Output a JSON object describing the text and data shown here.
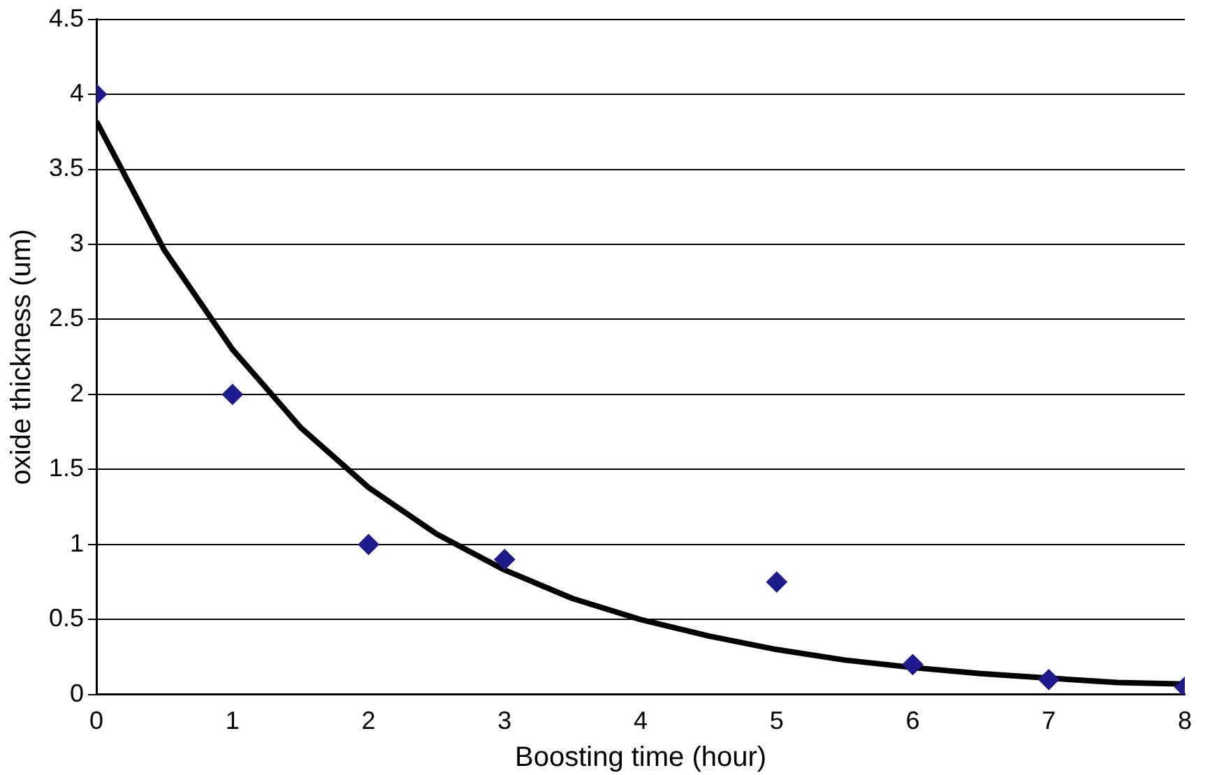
{
  "chart_data": {
    "type": "scatter",
    "xlabel": "Boosting time (hour)",
    "ylabel": "oxide thickness (um)",
    "x": [
      0,
      1,
      2,
      3,
      5,
      6,
      7,
      8
    ],
    "series": [
      {
        "type": "scatter",
        "color": "#1c1c8c",
        "values": [
          4,
          2,
          1,
          0.9,
          0.75,
          0.2,
          0.1,
          0.05
        ],
        "marker": "diamond"
      },
      {
        "type": "line",
        "color": "#000000",
        "marker": "none",
        "x": [
          0,
          0.5,
          1,
          1.5,
          2,
          2.5,
          3,
          3.5,
          4,
          4.5,
          5,
          5.5,
          6,
          6.5,
          7,
          7.5,
          8
        ],
        "values": [
          3.82,
          2.96,
          2.3,
          1.78,
          1.38,
          1.07,
          0.83,
          0.64,
          0.5,
          0.39,
          0.3,
          0.23,
          0.18,
          0.14,
          0.11,
          0.08,
          0.07
        ]
      }
    ],
    "xlim": [
      0,
      8
    ],
    "xticks": [
      0,
      1,
      2,
      3,
      4,
      5,
      6,
      7,
      8
    ],
    "ylim": [
      0,
      4.5
    ],
    "yticks": [
      0,
      0.5,
      1,
      1.5,
      2,
      2.5,
      3,
      3.5,
      4,
      4.5
    ],
    "grid": "y",
    "legend": false
  }
}
